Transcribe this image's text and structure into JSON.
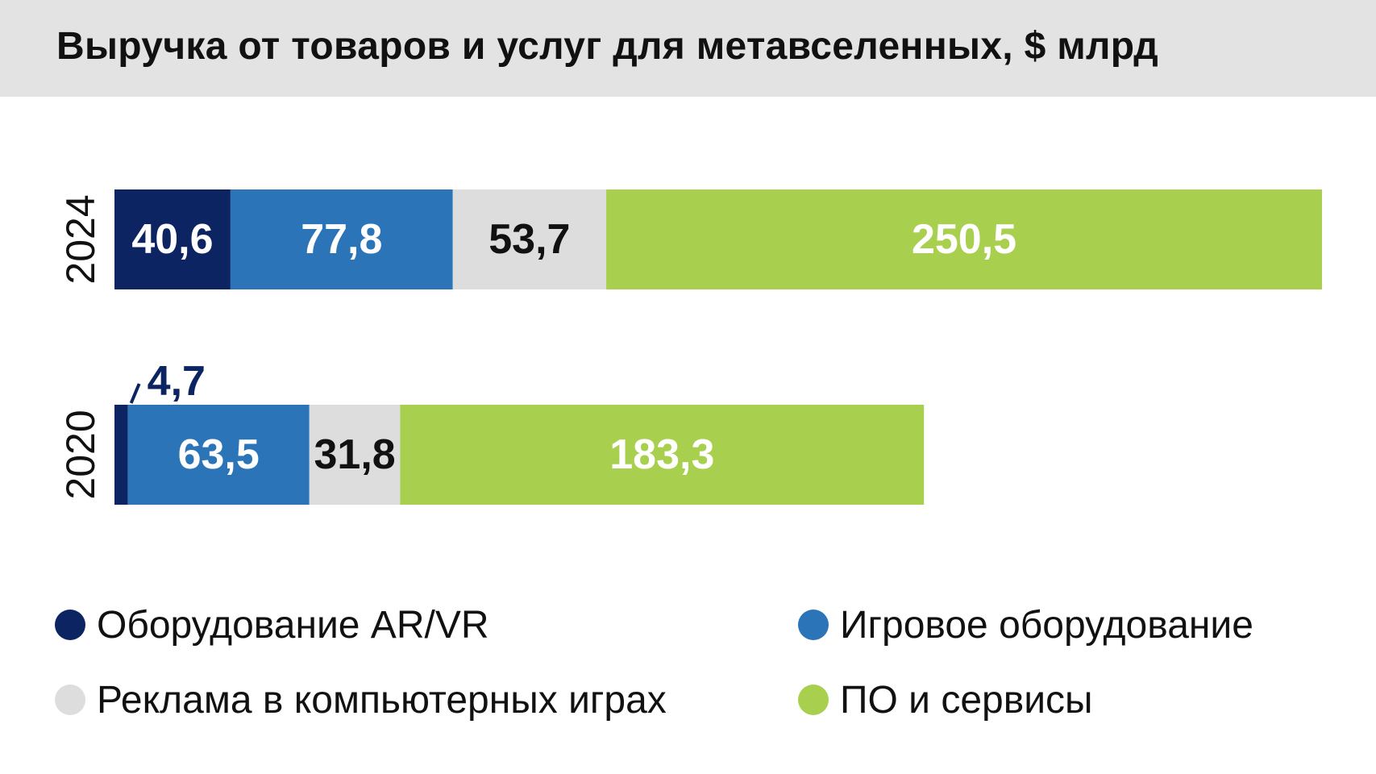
{
  "title": "Выручка от товаров и услуг для метавселенных, $ млрд",
  "chart_data": {
    "type": "bar",
    "orientation": "horizontal",
    "stacked": true,
    "title": "Выручка от товаров и услуг для метавселенных, $ млрд",
    "categories": [
      "2024",
      "2020"
    ],
    "series": [
      {
        "name": "Оборудование AR/VR",
        "color": "#0c2461",
        "values": [
          40.6,
          4.7
        ],
        "labels": [
          "40,6",
          "4,7"
        ],
        "label_colors": [
          "#ffffff",
          "#0c2461"
        ]
      },
      {
        "name": "Игровое оборудование",
        "color": "#2b74b8",
        "values": [
          77.8,
          63.5
        ],
        "labels": [
          "77,8",
          "63,5"
        ],
        "label_colors": [
          "#ffffff",
          "#ffffff"
        ]
      },
      {
        "name": "Реклама в компьютерных играх",
        "color": "#dddddd",
        "values": [
          53.7,
          31.8
        ],
        "labels": [
          "53,7",
          "31,8"
        ],
        "label_colors": [
          "#111111",
          "#111111"
        ]
      },
      {
        "name": "ПО и сервисы",
        "color": "#a8cf4d",
        "values": [
          250.5,
          183.3
        ],
        "labels": [
          "250,5",
          "183,3"
        ],
        "label_colors": [
          "#ffffff",
          "#ffffff"
        ]
      }
    ],
    "xlim": [
      0,
      422.6
    ],
    "grid": false,
    "legend_position": "bottom"
  }
}
